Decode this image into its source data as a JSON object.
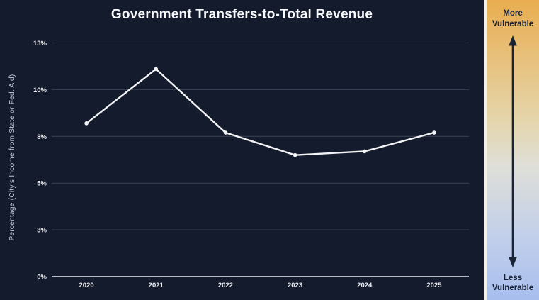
{
  "chart_data": {
    "type": "line",
    "title": "Government Transfers-to-Total Revenue",
    "ylabel": "Percentage (City's Income from State or Fed. Aid)",
    "xlabel": "",
    "categories": [
      "2020",
      "2021",
      "2022",
      "2023",
      "2024",
      "2025"
    ],
    "values": [
      8.2,
      11.1,
      7.7,
      6.5,
      6.7,
      7.7
    ],
    "ylim": [
      0,
      12.5
    ],
    "yticks": [
      {
        "value": 0,
        "label": "0%"
      },
      {
        "value": 2.5,
        "label": "3%"
      },
      {
        "value": 5,
        "label": "5%"
      },
      {
        "value": 7.5,
        "label": "8%"
      },
      {
        "value": 10,
        "label": "10%"
      },
      {
        "value": 12.5,
        "label": "13%"
      }
    ],
    "grid": true,
    "legend": false,
    "marker": "circle",
    "line_color": "#f2f3f5"
  },
  "vulnerability_scale": {
    "more_label": "More Vulnerable",
    "less_label": "Less Vulnerable",
    "arrow_icon": "up-down-arrow"
  },
  "colors": {
    "background": "#141b2c",
    "gridline": "#3b4254",
    "axis_line": "#b4bac6",
    "tick_text": "#e9ebf1",
    "title_text": "#f6f8fb",
    "ylabel_text": "#c9cedb",
    "line": "#f2f3f5",
    "sidebar_text": "#1a2335",
    "sidebar_border": "#f4f0e3",
    "sidebar_gradient_top": "#e9ad4f",
    "sidebar_gradient_upper": "#e5d5ab",
    "sidebar_gradient_mid": "#dfdfd7",
    "sidebar_gradient_lower": "#c3d0ea",
    "sidebar_gradient_bottom": "#a7beee"
  }
}
